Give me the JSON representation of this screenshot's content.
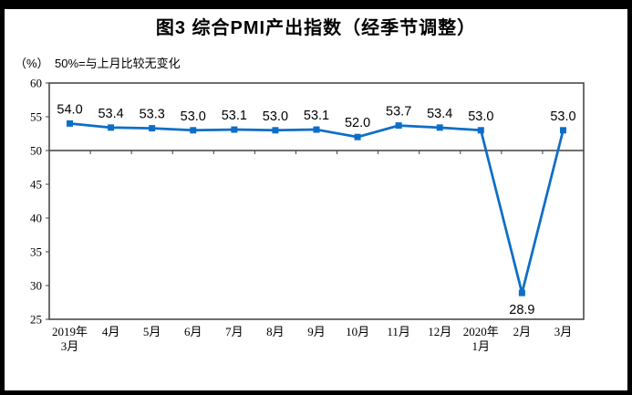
{
  "figure": {
    "title": "图3 综合PMI产出指数（经季节调整）"
  },
  "chart_data": {
    "type": "line",
    "title": "图3 综合PMI产出指数（经季节调整）",
    "ylabel": "（%）",
    "note": "50%=与上月比较无变化",
    "xlabel": "",
    "categories": [
      "2019年|3月",
      "4月",
      "5月",
      "6月",
      "7月",
      "8月",
      "9月",
      "10月",
      "11月",
      "12月",
      "2020年|1月",
      "2月",
      "3月"
    ],
    "values": [
      54.0,
      53.4,
      53.3,
      53.0,
      53.1,
      53.0,
      53.1,
      52.0,
      53.7,
      53.4,
      53.0,
      28.9,
      53.0
    ],
    "labels": [
      "54.0",
      "53.4",
      "53.3",
      "53.0",
      "53.1",
      "53.0",
      "53.1",
      "52.0",
      "53.7",
      "53.4",
      "53.0",
      "28.9",
      "53.0"
    ],
    "ylim": [
      25,
      60
    ],
    "yticks": [
      25,
      30,
      35,
      40,
      45,
      50,
      55,
      60
    ],
    "ytick_step": 5,
    "baseline": 50,
    "grid": false,
    "legend": null,
    "marker": "square",
    "line_color": "#0D6EC8",
    "axis_color": "#3F3F3F",
    "text_color": "#000000"
  }
}
